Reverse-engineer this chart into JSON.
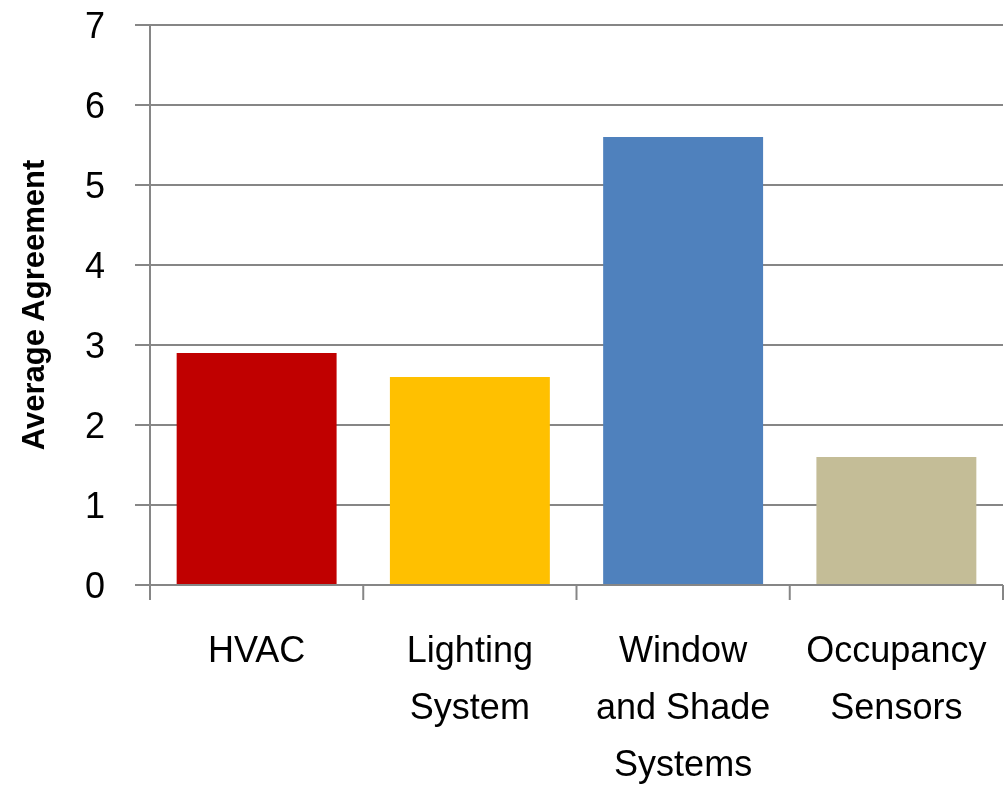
{
  "chart_data": {
    "type": "bar",
    "ylabel": "Average Agreement",
    "categories": [
      "HVAC",
      "Lighting System",
      "Window and Shade Systems",
      "Occupancy Sensors"
    ],
    "values": [
      2.9,
      2.6,
      5.6,
      1.6
    ],
    "colors": [
      "#c00000",
      "#ffc000",
      "#4f81bd",
      "#c4bd97"
    ],
    "ylim": [
      0,
      7
    ],
    "yticks": [
      0,
      1,
      2,
      3,
      4,
      5,
      6,
      7
    ],
    "grid": "y"
  }
}
